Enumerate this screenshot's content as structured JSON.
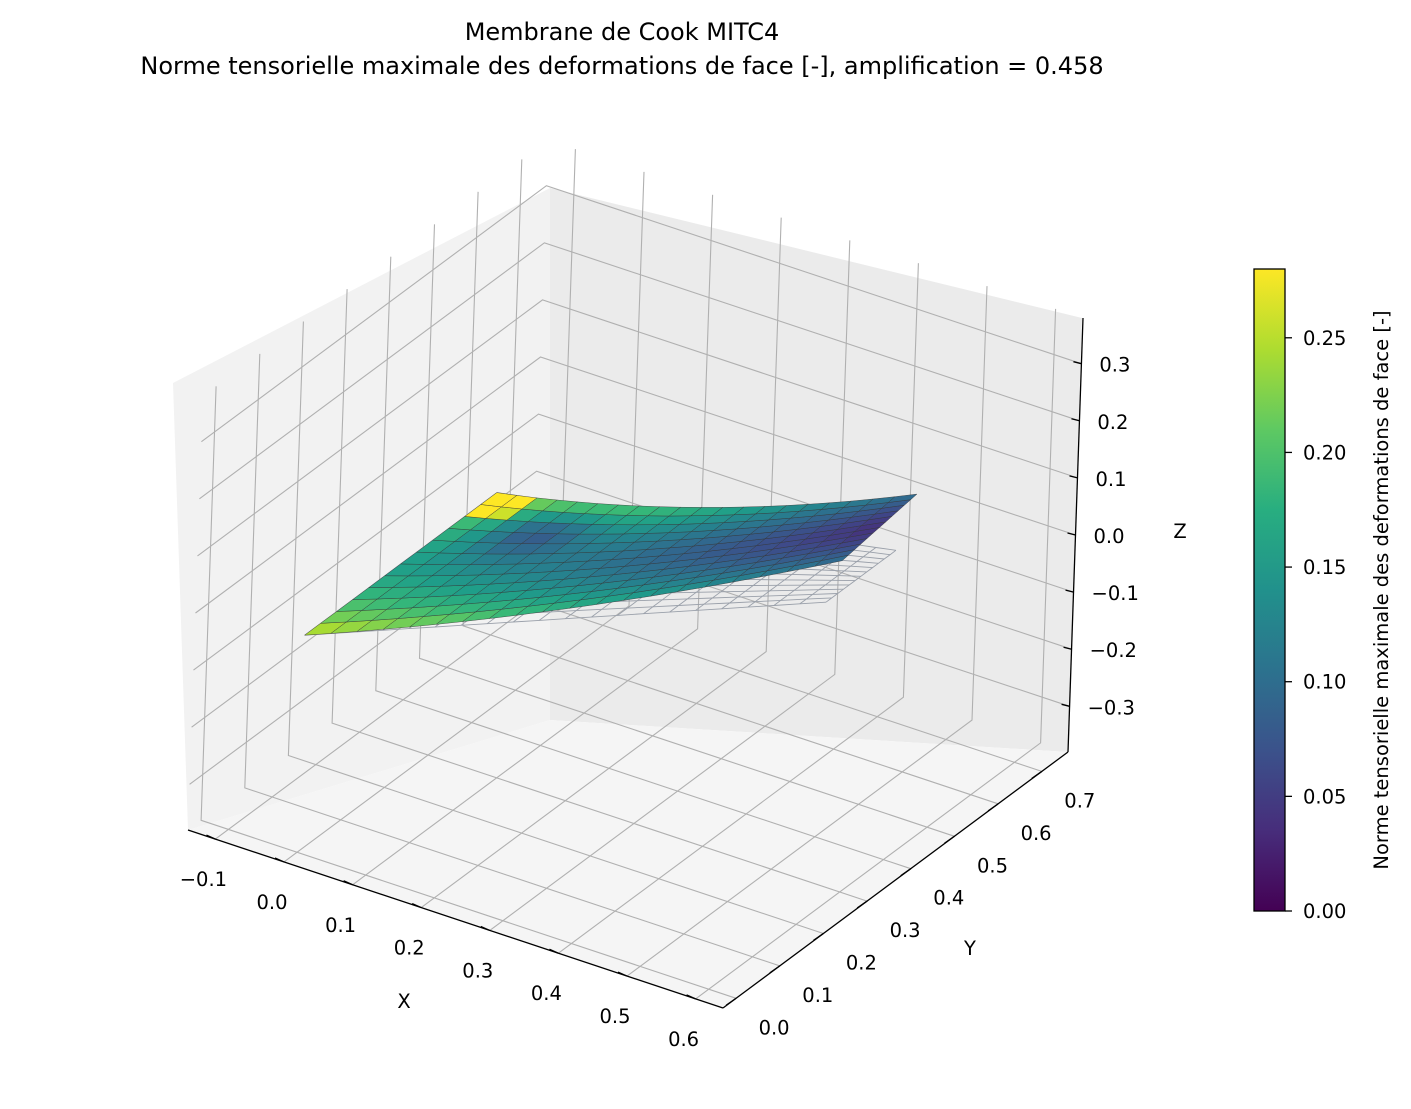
{
  "chart_data": {
    "type": "surface3d",
    "title": "Membrane de Cook MITC4",
    "subtitle": "Norme tensorielle maximale des deformations de face [-], amplification = 0.458",
    "xlabel": "X",
    "ylabel": "Y",
    "zlabel": "Z",
    "x_ticks": [
      "−0.1",
      "0.0",
      "0.1",
      "0.2",
      "0.3",
      "0.4",
      "0.5",
      "0.6"
    ],
    "y_ticks": [
      "0.0",
      "0.1",
      "0.2",
      "0.3",
      "0.4",
      "0.5",
      "0.6",
      "0.7"
    ],
    "z_ticks": [
      "−0.3",
      "−0.2",
      "−0.1",
      "0.0",
      "0.1",
      "0.2",
      "0.3"
    ],
    "xlim": [
      -0.14,
      0.64
    ],
    "ylim": [
      -0.03,
      0.76
    ],
    "zlim": [
      -0.38,
      0.38
    ],
    "grid": true,
    "colormap": "viridis",
    "colorbar": {
      "label": "Norme tensorielle maximale des deformations de face [-]",
      "min": 0.0,
      "max": 0.28,
      "ticks": [
        "0.00",
        "0.05",
        "0.10",
        "0.15",
        "0.20",
        "0.25"
      ]
    },
    "mesh": {
      "nu": 20,
      "nv": 12,
      "amplification": 0.458,
      "corners": {
        "p00": [
          0.0,
          0.0,
          0.0
        ],
        "p10": [
          0.48,
          0.44,
          0.0
        ],
        "p11": [
          0.48,
          0.6,
          0.0
        ],
        "p01": [
          0.0,
          0.44,
          0.0
        ]
      },
      "max_displacement_y": 0.1,
      "max_displacement_x": -0.04,
      "max_displacement_z": 0.02
    },
    "colors": {
      "pane": "#f2f2f2",
      "grid": "#b0b0b0",
      "edge": "#333333",
      "undeformed": "#9aa0aa"
    }
  }
}
